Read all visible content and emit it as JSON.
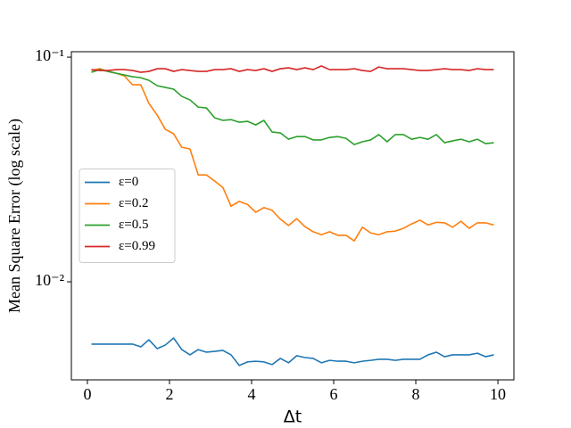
{
  "chart_data": {
    "type": "line",
    "y_label": "Mean Square Error (log scale)",
    "x_label": "Δt",
    "log_y": true,
    "grid": false,
    "legend_loc": "center left",
    "xlim": [
      -0.39,
      10.39
    ],
    "xticks": [
      0,
      2,
      4,
      6,
      8,
      10
    ],
    "ylim": [
      0.00366,
      0.1057
    ],
    "yticks": [
      {
        "value": 0.01,
        "label": "10⁻²"
      },
      {
        "value": 0.1,
        "label": "10⁻¹"
      }
    ],
    "x": [
      0.1,
      0.3,
      0.5,
      0.7,
      0.9,
      1.1,
      1.3,
      1.5,
      1.7,
      1.9,
      2.1,
      2.3,
      2.5,
      2.7,
      2.9,
      3.1,
      3.3,
      3.5,
      3.7,
      3.9,
      4.1,
      4.3,
      4.5,
      4.7,
      4.9,
      5.1,
      5.3,
      5.5,
      5.7,
      5.9,
      6.1,
      6.3,
      6.5,
      6.7,
      6.9,
      7.1,
      7.3,
      7.5,
      7.7,
      7.9,
      8.1,
      8.3,
      8.5,
      8.7,
      8.9,
      9.1,
      9.3,
      9.5,
      9.7,
      9.9
    ],
    "series": [
      {
        "name": "ε=0",
        "color": "#1f77b4",
        "values": [
          0.00528,
          0.00528,
          0.00528,
          0.00528,
          0.00528,
          0.00528,
          0.00513,
          0.00552,
          0.00504,
          0.00523,
          0.00562,
          0.00499,
          0.00473,
          0.00499,
          0.00486,
          0.0049,
          0.00495,
          0.00473,
          0.00424,
          0.0044,
          0.00443,
          0.0044,
          0.00428,
          0.00456,
          0.00436,
          0.00469,
          0.0046,
          0.00456,
          0.00436,
          0.00447,
          0.00443,
          0.00443,
          0.00436,
          0.00443,
          0.00447,
          0.00452,
          0.00452,
          0.00447,
          0.00452,
          0.00452,
          0.00452,
          0.00473,
          0.00486,
          0.00464,
          0.00473,
          0.00473,
          0.00473,
          0.00481,
          0.00464,
          0.00473
        ]
      },
      {
        "name": "ε=0.2",
        "color": "#ff7f0e",
        "values": [
          0.0872,
          0.0888,
          0.0864,
          0.0848,
          0.0825,
          0.0753,
          0.0753,
          0.0622,
          0.0552,
          0.0477,
          0.0456,
          0.0397,
          0.039,
          0.0299,
          0.0299,
          0.0281,
          0.0263,
          0.0217,
          0.0228,
          0.0221,
          0.0204,
          0.0214,
          0.0208,
          0.019,
          0.0178,
          0.0191,
          0.0176,
          0.0167,
          0.0162,
          0.0167,
          0.0161,
          0.0161,
          0.0152,
          0.0175,
          0.0165,
          0.0162,
          0.0167,
          0.0168,
          0.0173,
          0.0181,
          0.0188,
          0.0179,
          0.0184,
          0.0183,
          0.0175,
          0.0186,
          0.0173,
          0.0183,
          0.0183,
          0.0179
        ]
      },
      {
        "name": "ε=0.5",
        "color": "#2ca02c",
        "values": [
          0.0856,
          0.088,
          0.0864,
          0.0848,
          0.0833,
          0.0818,
          0.081,
          0.0788,
          0.0746,
          0.0733,
          0.072,
          0.0669,
          0.0645,
          0.0599,
          0.0594,
          0.0537,
          0.0523,
          0.0527,
          0.0513,
          0.0518,
          0.0499,
          0.0523,
          0.0464,
          0.046,
          0.0431,
          0.0443,
          0.0443,
          0.0428,
          0.0428,
          0.0439,
          0.0443,
          0.0435,
          0.0408,
          0.042,
          0.0428,
          0.0452,
          0.042,
          0.0452,
          0.0452,
          0.0431,
          0.0439,
          0.0431,
          0.0452,
          0.0416,
          0.0424,
          0.0431,
          0.042,
          0.0431,
          0.0412,
          0.0416
        ]
      },
      {
        "name": "ε=0.99",
        "color": "#d62728",
        "values": [
          0.088,
          0.0872,
          0.0872,
          0.088,
          0.088,
          0.0872,
          0.0856,
          0.0864,
          0.0888,
          0.0888,
          0.0864,
          0.088,
          0.0872,
          0.0864,
          0.0864,
          0.088,
          0.088,
          0.0888,
          0.0864,
          0.088,
          0.0872,
          0.0888,
          0.0864,
          0.0888,
          0.0896,
          0.088,
          0.0896,
          0.088,
          0.0913,
          0.088,
          0.088,
          0.088,
          0.0888,
          0.0872,
          0.0864,
          0.0904,
          0.0888,
          0.0888,
          0.0888,
          0.088,
          0.0872,
          0.0872,
          0.088,
          0.0888,
          0.088,
          0.088,
          0.0872,
          0.0888,
          0.088,
          0.088
        ]
      }
    ]
  }
}
